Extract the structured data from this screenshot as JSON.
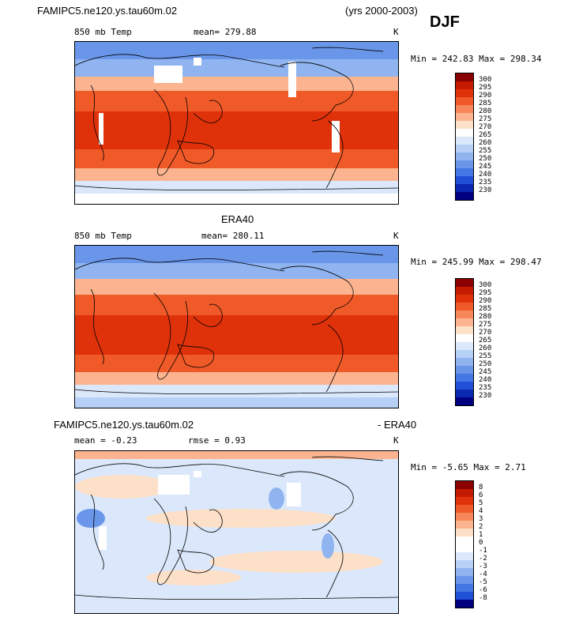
{
  "header": {
    "case_name": "FAMIPC5.ne120.ys.tau60m.02",
    "years": "(yrs 2000-2003)",
    "season": "DJF"
  },
  "panels": [
    {
      "field": "850 mb Temp",
      "stat1": "mean=  279.88",
      "units": "K",
      "minmax": "Min = 242.83  Max = 298.34",
      "levels": [
        "300",
        "295",
        "290",
        "285",
        "280",
        "275",
        "270",
        "265",
        "260",
        "255",
        "250",
        "245",
        "240",
        "235",
        "230"
      ],
      "colors": [
        "#8b0000",
        "#c41a00",
        "#e0320a",
        "#f05a28",
        "#f7875a",
        "#fbb48f",
        "#fde0c8",
        "#ffffff",
        "#dbe8fb",
        "#b7d0f6",
        "#8fb4f0",
        "#6a96ea",
        "#4377e3",
        "#2050d8",
        "#0a28b0",
        "#000080"
      ]
    },
    {
      "title": "ERA40",
      "field": "850 mb Temp",
      "stat1": "mean=  280.11",
      "units": "K",
      "minmax": "Min = 245.99  Max = 298.47",
      "levels": [
        "300",
        "295",
        "290",
        "285",
        "280",
        "275",
        "270",
        "265",
        "260",
        "255",
        "250",
        "245",
        "240",
        "235",
        "230"
      ],
      "colors": [
        "#8b0000",
        "#c41a00",
        "#e0320a",
        "#f05a28",
        "#f7875a",
        "#fbb48f",
        "#fde0c8",
        "#ffffff",
        "#dbe8fb",
        "#b7d0f6",
        "#8fb4f0",
        "#6a96ea",
        "#4377e3",
        "#2050d8",
        "#0a28b0",
        "#000080"
      ]
    },
    {
      "title_left": "FAMIPC5.ne120.ys.tau60m.02",
      "title_right": "- ERA40",
      "stat1": "mean =   -0.23",
      "stat2": "rmse =    0.93",
      "units": "K",
      "minmax": "Min =   -5.65  Max =    2.71",
      "levels": [
        "8",
        "6",
        "5",
        "4",
        "3",
        "2",
        "1",
        "0",
        "-1",
        "-2",
        "-3",
        "-4",
        "-5",
        "-6",
        "-8"
      ],
      "colors": [
        "#8b0000",
        "#c41a00",
        "#e0320a",
        "#f05a28",
        "#f7875a",
        "#fbb48f",
        "#fde0c8",
        "#ffffff",
        "#ffffff",
        "#dbe8fb",
        "#b7d0f6",
        "#8fb4f0",
        "#6a96ea",
        "#4377e3",
        "#2050d8",
        "#000080"
      ]
    }
  ],
  "map_style": {
    "tropics_color": "#e0320a",
    "subtropics_color": "#f05a28",
    "midlat_color": "#fbb48f",
    "cold_color": "#8fb4f0",
    "polar_color": "#6a96ea",
    "diff_warm": "#fde0c8",
    "diff_cool": "#dbe8fb",
    "land_masked": "#ffffff"
  }
}
